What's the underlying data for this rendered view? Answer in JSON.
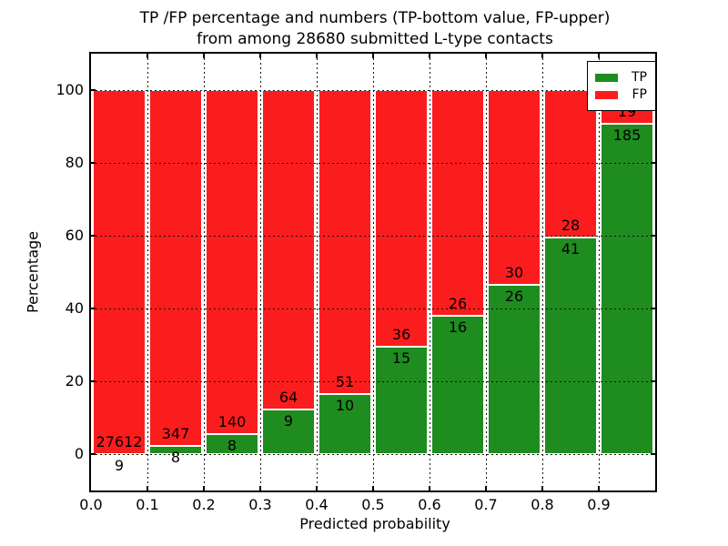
{
  "title": {
    "line1": "TP /FP percentage and numbers (TP-bottom value, FP-upper)",
    "line2": "from among 28680 submitted L-type contacts"
  },
  "axes": {
    "xlabel": "Predicted probability",
    "ylabel": "Percentage",
    "x_tick_labels": [
      "0.0",
      "0.1",
      "0.2",
      "0.3",
      "0.4",
      "0.5",
      "0.6",
      "0.7",
      "0.8",
      "0.9"
    ],
    "y_tick_labels": [
      "0",
      "20",
      "40",
      "60",
      "80",
      "100"
    ],
    "y_tick_values": [
      0,
      20,
      40,
      60,
      80,
      100
    ],
    "ylim": [
      -10,
      110
    ],
    "xlim": [
      0.0,
      1.0
    ],
    "grid_style": "dotted"
  },
  "legend": {
    "position": "upper right",
    "items": [
      {
        "label": "TP",
        "color": "#1f8c1f"
      },
      {
        "label": "FP",
        "color": "#fb1d1d"
      }
    ]
  },
  "colors": {
    "tp_green": "#1f8c1f",
    "fp_red": "#fb1d1d",
    "background": "#ffffff",
    "text": "#000000"
  },
  "chart_data": {
    "type": "bar",
    "stacked": true,
    "normalized": "each bar totals 100%",
    "title": "TP /FP percentage and numbers (TP-bottom value, FP-upper) from among 28680 submitted L-type contacts",
    "xlabel": "Predicted probability",
    "ylabel": "Percentage",
    "total_submitted_contacts": 28680,
    "bin_edges": [
      0.0,
      0.1,
      0.2,
      0.3,
      0.4,
      0.5,
      0.6,
      0.7,
      0.8,
      0.9,
      1.0
    ],
    "categories": [
      "0.0-0.1",
      "0.1-0.2",
      "0.2-0.3",
      "0.3-0.4",
      "0.4-0.5",
      "0.5-0.6",
      "0.6-0.7",
      "0.7-0.8",
      "0.8-0.9",
      "0.9-1.0"
    ],
    "series": [
      {
        "name": "TP",
        "color": "#1f8c1f",
        "counts": [
          9,
          8,
          8,
          9,
          10,
          15,
          16,
          26,
          41,
          185
        ],
        "percent": [
          0.03,
          2.25,
          5.41,
          12.33,
          16.39,
          29.41,
          38.1,
          46.43,
          59.42,
          90.69
        ]
      },
      {
        "name": "FP",
        "color": "#fb1d1d",
        "counts": [
          27612,
          347,
          140,
          64,
          51,
          36,
          26,
          30,
          28,
          19
        ],
        "percent": [
          99.97,
          97.75,
          94.59,
          87.67,
          83.61,
          70.59,
          61.9,
          53.57,
          40.58,
          9.31
        ]
      }
    ],
    "ylim": [
      -10,
      110
    ],
    "y_ticks": [
      0,
      20,
      40,
      60,
      80,
      100
    ],
    "grid": "dotted",
    "legend_position": "upper right"
  }
}
